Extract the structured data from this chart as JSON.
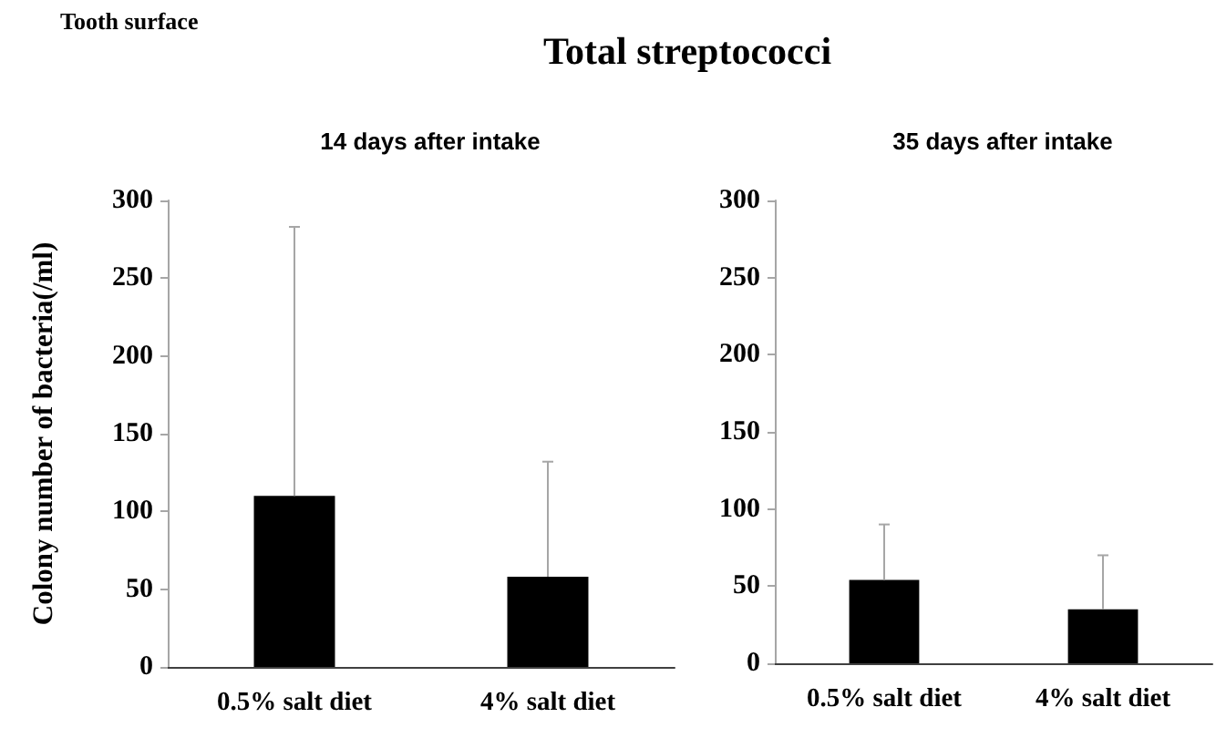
{
  "chart_data": [
    {
      "type": "bar",
      "title": "14 days after intake",
      "ylabel": "Colony number of bacteria(/ml)",
      "annotations": [
        "Tooth surface",
        "Total streptococci"
      ],
      "categories": [
        "0.5% salt diet",
        "4% salt diet"
      ],
      "values": [
        110,
        58
      ],
      "color": "#000000",
      "errors": [
        [
          110,
          283
        ],
        [
          58,
          132
        ]
      ],
      "ylim": [
        0,
        300
      ],
      "yticks": [
        0,
        50,
        100,
        150,
        200,
        250,
        300
      ]
    },
    {
      "type": "bar",
      "title": "35 days after intake",
      "categories": [
        "0.5% salt diet",
        "4% salt diet"
      ],
      "values": [
        54,
        35
      ],
      "color": "#000000",
      "errors": [
        [
          54,
          90
        ],
        [
          35,
          70
        ]
      ],
      "ylim": [
        0,
        300
      ],
      "yticks": [
        0,
        50,
        100,
        150,
        200,
        250,
        300
      ]
    }
  ]
}
